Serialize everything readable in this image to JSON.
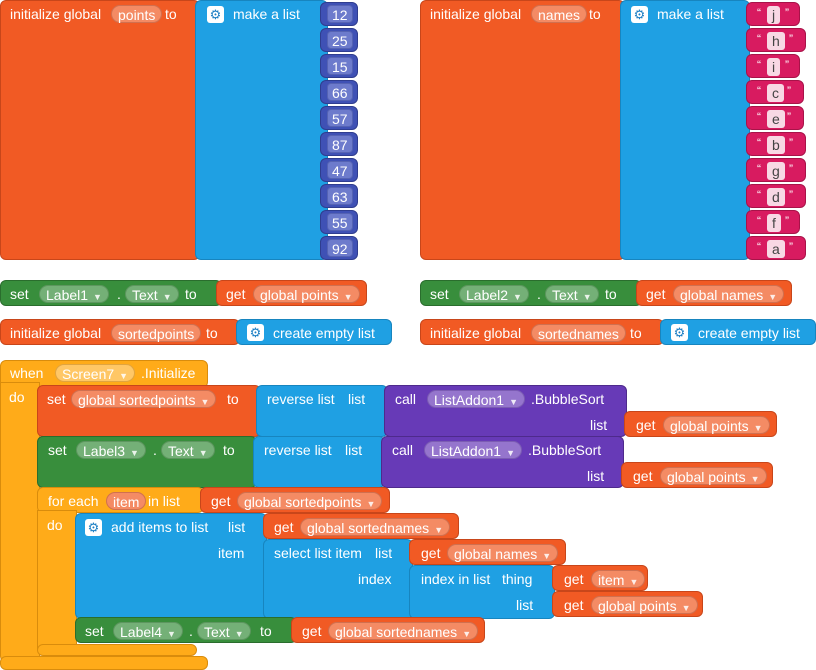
{
  "kw": {
    "initialize_global": "initialize global",
    "to": "to",
    "make_a_list": "make a list",
    "create_empty_list": "create empty list",
    "set": "set",
    "dot": ".",
    "get": "get",
    "when": "when",
    "do": "do",
    "initialize": ".Initialize",
    "reverse_list": "reverse list",
    "list": "list",
    "call": "call",
    "bubblesort": ".BubbleSort",
    "for_each": "for each",
    "in_list": "in list",
    "add_items_to_list": "add items to list",
    "item": "item",
    "select_list_item": "select list item",
    "index": "index",
    "index_in_list": "index in list",
    "thing": "thing"
  },
  "vars": {
    "points": "points",
    "names": "names",
    "sortedpoints": "sortedpoints",
    "sortednames": "sortednames",
    "global_points": "global points",
    "global_names": "global names",
    "global_sortedpoints": "global sortedpoints",
    "global_sortednames": "global sortednames",
    "item": "item"
  },
  "components": {
    "label1": "Label1",
    "label2": "Label2",
    "label3": "Label3",
    "label4": "Label4",
    "text": "Text",
    "screen": "Screen7",
    "listaddon": "ListAddon1"
  },
  "points_list": [
    "12",
    "25",
    "15",
    "66",
    "57",
    "87",
    "47",
    "63",
    "55",
    "92"
  ],
  "names_list": [
    "j",
    "h",
    "i",
    "c",
    "e",
    "b",
    "g",
    "d",
    "f",
    "a"
  ],
  "colors": {
    "variables": "#f15a24",
    "lists": "#1fa0e3",
    "math": "#3f51b5",
    "text": "#d81b60",
    "components_setter": "#388e3c",
    "components_call": "#673ab7",
    "control": "#ffab19"
  }
}
